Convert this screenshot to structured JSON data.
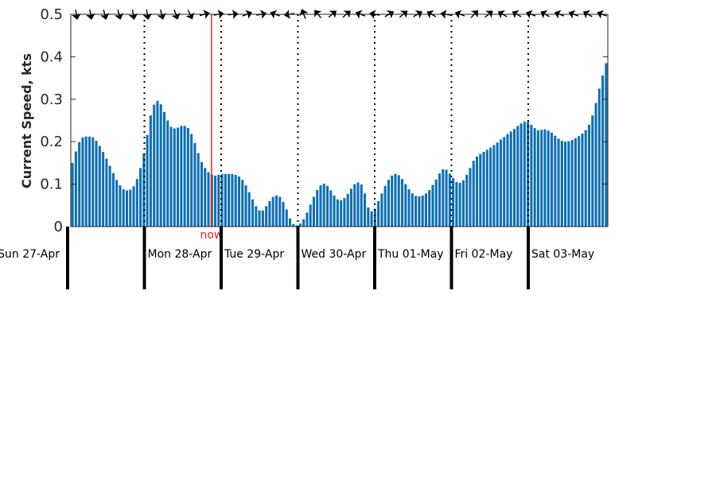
{
  "chart_data": {
    "type": "bar",
    "ylabel": "Current Speed, kts",
    "ylim": [
      0,
      0.5
    ],
    "yticks": [
      0,
      0.1,
      0.2,
      0.3,
      0.4,
      0.5
    ],
    "ytick_labels": [
      "0",
      "0.1",
      "0.2",
      "0.3",
      "0.4",
      "0.5"
    ],
    "bar_color": "#0f6fb4",
    "now_color": "#e8231f",
    "now_label": "now",
    "now_time": 1.875,
    "day_labels": [
      "Sun 27-Apr",
      "Mon 28-Apr",
      "Tue 29-Apr",
      "Wed 30-Apr",
      "Thu 01-May",
      "Fri 02-May",
      "Sat 03-May"
    ],
    "day_boundaries": [
      1,
      2,
      3,
      4,
      5,
      6
    ],
    "x_range_days": [
      0.0625,
      7.0625
    ],
    "values": [
      0.15,
      0.177,
      0.199,
      0.21,
      0.212,
      0.212,
      0.21,
      0.202,
      0.19,
      0.176,
      0.16,
      0.143,
      0.126,
      0.11,
      0.097,
      0.088,
      0.085,
      0.087,
      0.095,
      0.112,
      0.138,
      0.172,
      0.216,
      0.262,
      0.287,
      0.296,
      0.288,
      0.27,
      0.25,
      0.235,
      0.231,
      0.233,
      0.237,
      0.237,
      0.232,
      0.218,
      0.197,
      0.173,
      0.152,
      0.138,
      0.128,
      0.123,
      0.12,
      0.122,
      0.124,
      0.124,
      0.124,
      0.124,
      0.122,
      0.118,
      0.11,
      0.097,
      0.081,
      0.064,
      0.048,
      0.038,
      0.038,
      0.048,
      0.06,
      0.07,
      0.073,
      0.07,
      0.058,
      0.04,
      0.019,
      0.006,
      0.003,
      0.007,
      0.017,
      0.033,
      0.052,
      0.07,
      0.086,
      0.097,
      0.101,
      0.096,
      0.085,
      0.073,
      0.064,
      0.062,
      0.067,
      0.077,
      0.089,
      0.1,
      0.104,
      0.099,
      0.078,
      0.045,
      0.036,
      0.042,
      0.06,
      0.078,
      0.096,
      0.11,
      0.12,
      0.124,
      0.121,
      0.112,
      0.1,
      0.088,
      0.078,
      0.072,
      0.071,
      0.073,
      0.078,
      0.086,
      0.098,
      0.111,
      0.125,
      0.135,
      0.134,
      0.125,
      0.114,
      0.105,
      0.103,
      0.109,
      0.122,
      0.138,
      0.155,
      0.165,
      0.171,
      0.176,
      0.181,
      0.186,
      0.192,
      0.198,
      0.205,
      0.211,
      0.218,
      0.224,
      0.23,
      0.237,
      0.243,
      0.247,
      0.247,
      0.24,
      0.232,
      0.227,
      0.228,
      0.229,
      0.226,
      0.221,
      0.214,
      0.207,
      0.202,
      0.2,
      0.201,
      0.204,
      0.208,
      0.213,
      0.219,
      0.227,
      0.24,
      0.262,
      0.291,
      0.325,
      0.356,
      0.385
    ]
  }
}
